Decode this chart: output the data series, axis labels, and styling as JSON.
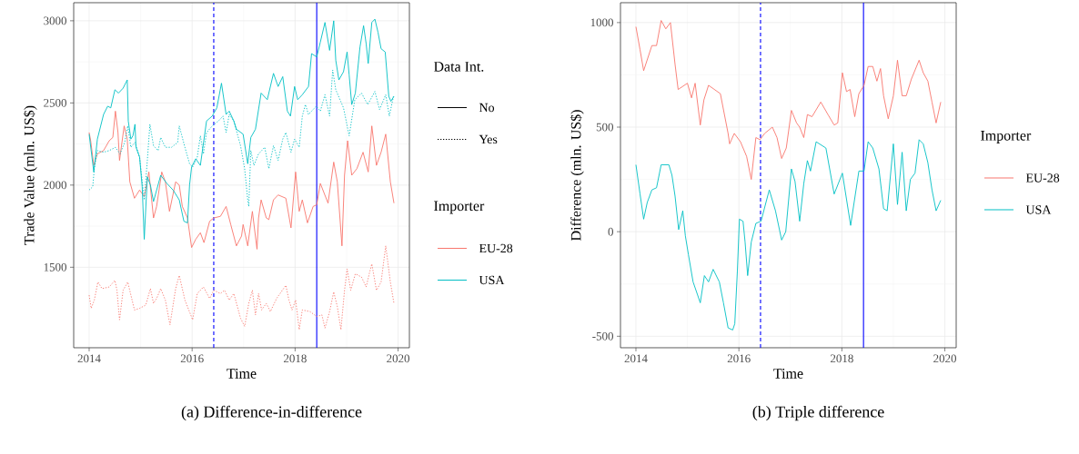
{
  "chart_data": [
    {
      "type": "line",
      "title": "(a) Difference-in-difference",
      "xlabel": "Time",
      "ylabel": "Trade Value (mln. US$)",
      "legend_title": "Importer",
      "annotations": [
        "Data Int.",
        "No",
        "Yes"
      ],
      "xlim": [
        2013.7,
        2020.22
      ],
      "ylim": [
        1010,
        3110
      ],
      "xticks": [
        2014,
        2016,
        2018,
        2020
      ],
      "yticks": [
        1500,
        2000,
        2500,
        3000
      ],
      "grid": true,
      "legend": "right",
      "ref_lines": [
        {
          "axis": "x",
          "value": 2016.42,
          "color": "#0000ff",
          "line_style": "dashed"
        },
        {
          "axis": "x",
          "value": 2018.42,
          "color": "#0000ff",
          "line_style": "solid"
        }
      ],
      "series": [
        {
          "name": "EU-28",
          "color": "#f8766d",
          "line_style": "solid",
          "x": [
            2014.0,
            2014.03,
            2014.09,
            2014.16,
            2014.28,
            2014.39,
            2014.46,
            2014.51,
            2014.56,
            2014.59,
            2014.68,
            2014.74,
            2014.79,
            2014.88,
            2014.98,
            2015.07,
            2015.16,
            2015.25,
            2015.31,
            2015.41,
            2015.48,
            2015.56,
            2015.68,
            2015.75,
            2015.81,
            2015.91,
            2015.99,
            2016.07,
            2016.16,
            2016.23,
            2016.34,
            2016.42,
            2016.55,
            2016.66,
            2016.75,
            2016.86,
            2016.96,
            2016.99,
            2017.08,
            2017.17,
            2017.26,
            2017.29,
            2017.34,
            2017.44,
            2017.49,
            2017.58,
            2017.67,
            2017.82,
            2017.92,
            2018.01,
            2018.08,
            2018.14,
            2018.24,
            2018.35,
            2018.42,
            2018.49,
            2018.64,
            2018.75,
            2018.82,
            2018.91,
            2018.96,
            2019.02,
            2019.1,
            2019.2,
            2019.32,
            2019.42,
            2019.49,
            2019.58,
            2019.67,
            2019.76,
            2019.85,
            2019.92
          ],
          "values": [
            2320,
            2270,
            2120,
            2190,
            2210,
            2270,
            2290,
            2450,
            2320,
            2150,
            2360,
            2280,
            2020,
            1920,
            1970,
            1930,
            2080,
            1800,
            1870,
            2080,
            2020,
            1840,
            2020,
            2000,
            1870,
            1800,
            1620,
            1670,
            1710,
            1650,
            1780,
            1800,
            1810,
            1870,
            1760,
            1630,
            1690,
            1760,
            1630,
            1840,
            1610,
            1800,
            1910,
            1800,
            1790,
            1910,
            1940,
            1920,
            1740,
            2080,
            1840,
            1910,
            1770,
            1870,
            1880,
            2010,
            1890,
            2140,
            2020,
            1630,
            2060,
            2270,
            2060,
            2100,
            2200,
            2080,
            2360,
            2120,
            2200,
            2310,
            2020,
            1890
          ]
        },
        {
          "color": "#f8766d",
          "line_style": "dotted",
          "x": [
            2014.0,
            2014.04,
            2014.1,
            2014.17,
            2014.25,
            2014.39,
            2014.5,
            2014.54,
            2014.59,
            2014.66,
            2014.75,
            2014.88,
            2014.98,
            2015.1,
            2015.19,
            2015.25,
            2015.31,
            2015.39,
            2015.48,
            2015.57,
            2015.68,
            2015.75,
            2015.86,
            2016.01,
            2016.1,
            2016.22,
            2016.34,
            2016.42,
            2016.55,
            2016.63,
            2016.72,
            2016.81,
            2016.94,
            2017.02,
            2017.1,
            2017.17,
            2017.23,
            2017.29,
            2017.35,
            2017.44,
            2017.52,
            2017.64,
            2017.82,
            2017.88,
            2017.94,
            2018.01,
            2018.08,
            2018.14,
            2018.29,
            2018.42,
            2018.52,
            2018.58,
            2018.67,
            2018.75,
            2018.82,
            2018.89,
            2018.96,
            2019.01,
            2019.08,
            2019.17,
            2019.29,
            2019.38,
            2019.44,
            2019.49,
            2019.58,
            2019.67,
            2019.76,
            2019.85,
            2019.92
          ],
          "values": [
            1330,
            1250,
            1300,
            1410,
            1370,
            1380,
            1420,
            1360,
            1180,
            1360,
            1410,
            1240,
            1250,
            1270,
            1370,
            1280,
            1310,
            1370,
            1300,
            1150,
            1370,
            1450,
            1300,
            1180,
            1340,
            1380,
            1310,
            1360,
            1340,
            1360,
            1300,
            1340,
            1190,
            1140,
            1280,
            1360,
            1210,
            1340,
            1240,
            1280,
            1230,
            1310,
            1390,
            1300,
            1240,
            1300,
            1120,
            1240,
            1230,
            1200,
            1210,
            1130,
            1230,
            1350,
            1260,
            1120,
            1360,
            1490,
            1360,
            1460,
            1440,
            1380,
            1460,
            1520,
            1360,
            1410,
            1630,
            1410,
            1280
          ]
        },
        {
          "name": "USA",
          "color": "#00bfc4",
          "line_style": "solid",
          "x": [
            2014.0,
            2014.09,
            2014.16,
            2014.28,
            2014.36,
            2014.42,
            2014.5,
            2014.57,
            2014.66,
            2014.74,
            2014.76,
            2014.81,
            2014.85,
            2014.89,
            2014.91,
            2014.98,
            2015.03,
            2015.07,
            2015.13,
            2015.19,
            2015.25,
            2015.39,
            2015.51,
            2015.63,
            2015.75,
            2015.84,
            2015.91,
            2015.95,
            2015.99,
            2016.07,
            2016.16,
            2016.28,
            2016.39,
            2016.48,
            2016.57,
            2016.66,
            2016.72,
            2016.81,
            2016.86,
            2016.99,
            2017.08,
            2017.14,
            2017.23,
            2017.34,
            2017.46,
            2017.58,
            2017.67,
            2017.76,
            2017.85,
            2017.91,
            2017.99,
            2018.05,
            2018.14,
            2018.26,
            2018.32,
            2018.42,
            2018.49,
            2018.58,
            2018.67,
            2018.75,
            2018.79,
            2018.85,
            2018.94,
            2019.01,
            2019.05,
            2019.1,
            2019.17,
            2019.26,
            2019.33,
            2019.38,
            2019.42,
            2019.49,
            2019.55,
            2019.61,
            2019.67,
            2019.75,
            2019.82,
            2019.86,
            2019.92
          ],
          "values": [
            2310,
            2080,
            2280,
            2430,
            2480,
            2470,
            2580,
            2560,
            2590,
            2640,
            2390,
            2280,
            2300,
            2370,
            2230,
            2170,
            1990,
            1670,
            2050,
            2000,
            1900,
            2060,
            2010,
            1970,
            1910,
            1780,
            1770,
            2000,
            2110,
            2160,
            2120,
            2390,
            2420,
            2470,
            2620,
            2430,
            2450,
            2390,
            2340,
            2310,
            2130,
            2290,
            2340,
            2560,
            2520,
            2680,
            2600,
            2660,
            2450,
            2420,
            2600,
            2520,
            2550,
            2600,
            2800,
            2780,
            2870,
            2990,
            2820,
            3000,
            2760,
            2640,
            2690,
            2810,
            2670,
            2490,
            2560,
            2840,
            2970,
            2860,
            2740,
            2990,
            3010,
            2930,
            2830,
            2810,
            2540,
            2510,
            2540
          ]
        },
        {
          "color": "#00bfc4",
          "line_style": "dotted",
          "x": [
            2014.0,
            2014.07,
            2014.1,
            2014.16,
            2014.28,
            2014.39,
            2014.51,
            2014.6,
            2014.69,
            2014.75,
            2014.81,
            2014.89,
            2014.98,
            2015.07,
            2015.13,
            2015.18,
            2015.25,
            2015.34,
            2015.39,
            2015.48,
            2015.6,
            2015.72,
            2015.75,
            2015.86,
            2015.95,
            2016.01,
            2016.1,
            2016.16,
            2016.22,
            2016.28,
            2016.39,
            2016.51,
            2016.6,
            2016.66,
            2016.72,
            2016.81,
            2016.94,
            2017.02,
            2017.08,
            2017.1,
            2017.14,
            2017.2,
            2017.29,
            2017.41,
            2017.49,
            2017.58,
            2017.67,
            2017.76,
            2017.82,
            2017.92,
            2017.99,
            2018.08,
            2018.14,
            2018.2,
            2018.26,
            2018.41,
            2018.49,
            2018.58,
            2018.67,
            2018.73,
            2018.79,
            2018.94,
            2019.05,
            2019.16,
            2019.29,
            2019.41,
            2019.55,
            2019.64,
            2019.76,
            2019.83,
            2019.91
          ],
          "values": [
            1970,
            1990,
            2100,
            2210,
            2200,
            2210,
            2230,
            2190,
            2260,
            2360,
            2230,
            2260,
            2170,
            1910,
            2150,
            2370,
            2240,
            2210,
            2290,
            2230,
            2230,
            2260,
            2360,
            2230,
            2130,
            2110,
            2170,
            2300,
            2190,
            2320,
            2360,
            2390,
            2420,
            2320,
            2430,
            2390,
            2240,
            2100,
            1910,
            1870,
            2210,
            2120,
            2190,
            2230,
            2100,
            2240,
            2150,
            2280,
            2320,
            2200,
            2280,
            2230,
            2420,
            2490,
            2430,
            2480,
            2450,
            2550,
            2420,
            2700,
            2580,
            2470,
            2300,
            2520,
            2560,
            2490,
            2570,
            2460,
            2550,
            2420,
            2540
          ]
        }
      ]
    },
    {
      "type": "line",
      "title": "(b) Triple difference",
      "xlabel": "Time",
      "ylabel": "Difference (mln. US$)",
      "legend_title": "Importer",
      "xlim": [
        2013.7,
        2020.22
      ],
      "ylim": [
        -555,
        1095
      ],
      "xticks": [
        2014,
        2016,
        2018,
        2020
      ],
      "yticks": [
        -500,
        0,
        500,
        1000
      ],
      "grid": true,
      "legend": "right",
      "ref_lines": [
        {
          "axis": "x",
          "value": 2016.42,
          "color": "#0000ff",
          "line_style": "dashed"
        },
        {
          "axis": "x",
          "value": 2018.42,
          "color": "#0000ff",
          "line_style": "solid"
        }
      ],
      "series": [
        {
          "name": "EU-28",
          "color": "#f8766d",
          "line_style": "solid",
          "x": [
            2014.0,
            2014.08,
            2014.15,
            2014.31,
            2014.4,
            2014.49,
            2014.58,
            2014.67,
            2014.76,
            2014.82,
            2015.0,
            2015.08,
            2015.15,
            2015.25,
            2015.32,
            2015.41,
            2015.64,
            2015.79,
            2015.82,
            2015.91,
            2016.03,
            2016.15,
            2016.24,
            2016.33,
            2016.41,
            2016.5,
            2016.65,
            2016.74,
            2016.83,
            2016.92,
            2017.02,
            2017.12,
            2017.18,
            2017.26,
            2017.33,
            2017.42,
            2017.59,
            2017.73,
            2017.85,
            2017.92,
            2018.01,
            2018.09,
            2018.16,
            2018.25,
            2018.33,
            2018.43,
            2018.51,
            2018.6,
            2018.68,
            2018.75,
            2018.81,
            2018.9,
            2019.0,
            2019.08,
            2019.17,
            2019.25,
            2019.35,
            2019.5,
            2019.58,
            2019.67,
            2019.75,
            2019.83,
            2019.92
          ],
          "values": [
            980,
            870,
            770,
            890,
            890,
            1010,
            970,
            1000,
            800,
            680,
            710,
            640,
            710,
            510,
            630,
            700,
            660,
            470,
            420,
            470,
            430,
            360,
            250,
            450,
            440,
            470,
            500,
            450,
            350,
            400,
            580,
            520,
            500,
            450,
            560,
            550,
            620,
            560,
            510,
            520,
            760,
            670,
            680,
            550,
            660,
            700,
            790,
            790,
            720,
            780,
            650,
            540,
            650,
            820,
            650,
            650,
            730,
            820,
            760,
            720,
            620,
            520,
            620
          ]
        },
        {
          "name": "USA",
          "color": "#00bfc4",
          "line_style": "solid",
          "x": [
            2014.0,
            2014.08,
            2014.15,
            2014.22,
            2014.31,
            2014.4,
            2014.49,
            2014.64,
            2014.7,
            2014.76,
            2014.83,
            2014.91,
            2014.96,
            2015.02,
            2015.11,
            2015.25,
            2015.33,
            2015.41,
            2015.5,
            2015.62,
            2015.7,
            2015.79,
            2015.88,
            2015.92,
            2015.97,
            2016.01,
            2016.08,
            2016.12,
            2016.17,
            2016.24,
            2016.33,
            2016.43,
            2016.59,
            2016.71,
            2016.83,
            2016.91,
            2017.02,
            2017.09,
            2017.18,
            2017.26,
            2017.33,
            2017.39,
            2017.5,
            2017.69,
            2017.85,
            2018.01,
            2018.17,
            2018.33,
            2018.43,
            2018.51,
            2018.6,
            2018.72,
            2018.81,
            2018.88,
            2019.0,
            2019.08,
            2019.17,
            2019.25,
            2019.33,
            2019.42,
            2019.5,
            2019.58,
            2019.67,
            2019.75,
            2019.83,
            2019.92
          ],
          "values": [
            320,
            180,
            60,
            140,
            200,
            210,
            320,
            320,
            270,
            170,
            10,
            100,
            -20,
            -110,
            -240,
            -340,
            -210,
            -240,
            -180,
            -240,
            -340,
            -460,
            -470,
            -440,
            -190,
            60,
            50,
            -50,
            -210,
            -50,
            40,
            50,
            200,
            100,
            -40,
            0,
            300,
            240,
            50,
            230,
            340,
            290,
            430,
            400,
            180,
            280,
            30,
            290,
            290,
            430,
            400,
            300,
            110,
            100,
            420,
            130,
            380,
            100,
            250,
            280,
            440,
            420,
            330,
            200,
            100,
            150
          ]
        }
      ]
    }
  ]
}
